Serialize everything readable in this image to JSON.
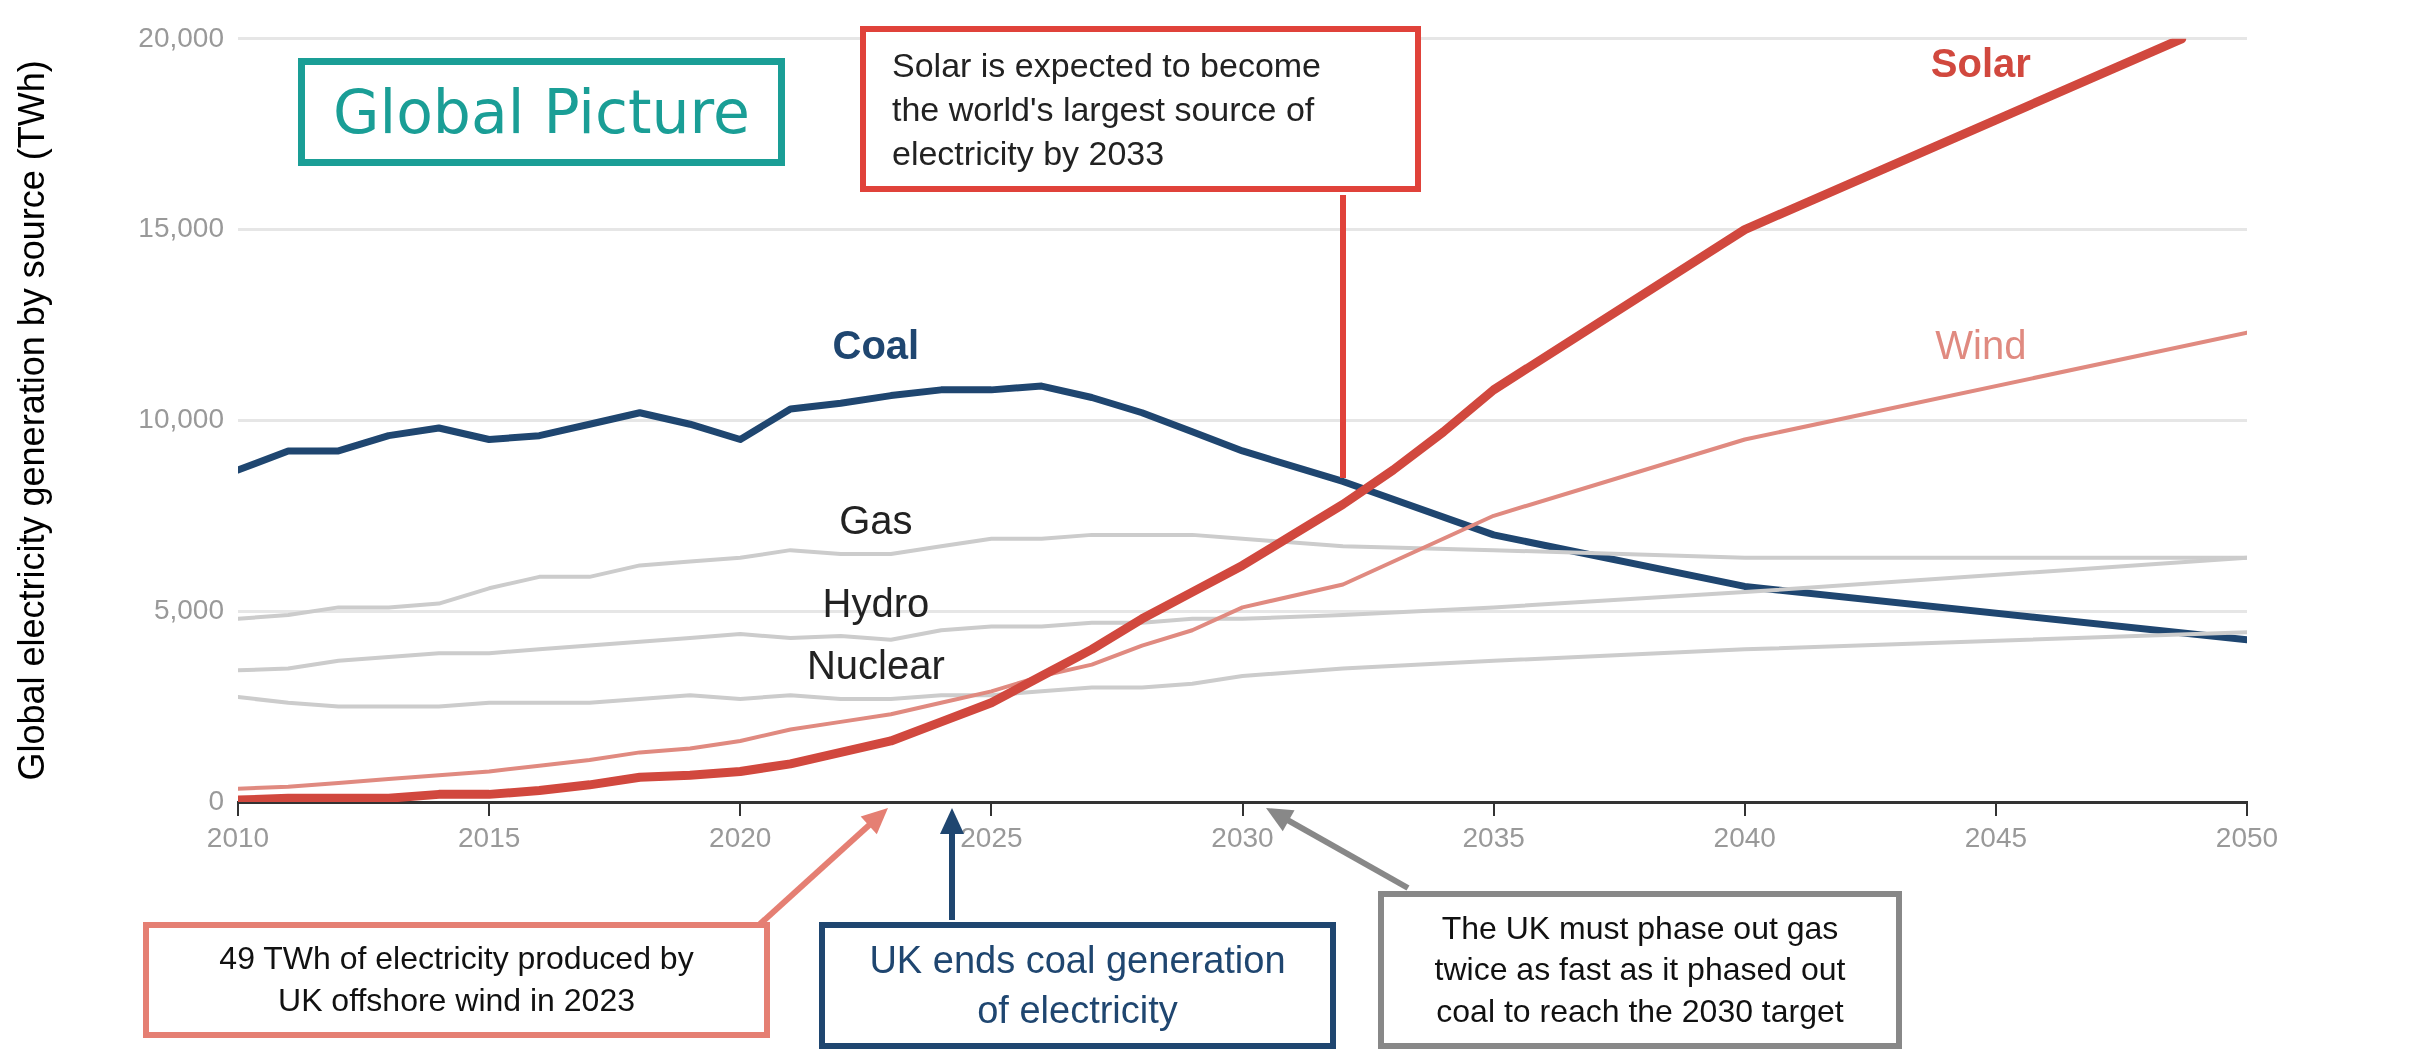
{
  "chart_data": {
    "type": "line",
    "title": "Global Picture",
    "ylabel": "Global electricity generation by source (TWh)",
    "x": [
      2010,
      2011,
      2012,
      2013,
      2014,
      2015,
      2016,
      2017,
      2018,
      2019,
      2020,
      2021,
      2022,
      2023,
      2024,
      2025,
      2026,
      2027,
      2028,
      2029,
      2030,
      2032,
      2035,
      2040,
      2050
    ],
    "series": [
      {
        "name": "Coal",
        "color": "#1f4670",
        "values": [
          8700,
          9200,
          9200,
          9600,
          9800,
          9500,
          9600,
          9900,
          10200,
          9900,
          9500,
          10300,
          10450,
          10650,
          10800,
          10800,
          10900,
          10600,
          10200,
          9700,
          9200,
          8400,
          7000,
          5650,
          4250
        ]
      },
      {
        "name": "Gas",
        "color": "#cccccc",
        "values": [
          4800,
          4900,
          5100,
          5100,
          5200,
          5600,
          5900,
          5900,
          6200,
          6300,
          6400,
          6600,
          6500,
          6500,
          6700,
          6900,
          6900,
          7000,
          7000,
          7000,
          6900,
          6700,
          6600,
          6400,
          6400
        ]
      },
      {
        "name": "Hydro",
        "color": "#cccccc",
        "values": [
          3450,
          3500,
          3700,
          3800,
          3900,
          3900,
          4000,
          4100,
          4200,
          4300,
          4400,
          4300,
          4350,
          4250,
          4500,
          4600,
          4600,
          4700,
          4700,
          4800,
          4800,
          4900,
          5100,
          5500,
          6400
        ]
      },
      {
        "name": "Nuclear",
        "color": "#cccccc",
        "values": [
          2750,
          2600,
          2500,
          2500,
          2500,
          2600,
          2600,
          2600,
          2700,
          2800,
          2700,
          2800,
          2700,
          2700,
          2800,
          2800,
          2900,
          3000,
          3000,
          3100,
          3300,
          3500,
          3700,
          4000,
          4450
        ]
      },
      {
        "name": "Wind",
        "color": "#e08a80",
        "values": [
          350,
          400,
          500,
          600,
          700,
          800,
          950,
          1100,
          1300,
          1400,
          1600,
          1900,
          2100,
          2300,
          2600,
          2900,
          3300,
          3600,
          4100,
          4500,
          5100,
          5700,
          7500,
          9500,
          12300
        ]
      },
      {
        "name": "Solar",
        "color": "#d1483e",
        "x": [
          2010,
          2011,
          2012,
          2013,
          2014,
          2015,
          2016,
          2017,
          2018,
          2019,
          2020,
          2021,
          2022,
          2023,
          2024,
          2025,
          2026,
          2027,
          2028,
          2029,
          2030,
          2031,
          2032,
          2033,
          2034,
          2035,
          2040,
          2048.7
        ],
        "values": [
          50,
          100,
          100,
          100,
          200,
          200,
          300,
          450,
          650,
          700,
          800,
          1000,
          1300,
          1600,
          2100,
          2600,
          3300,
          4000,
          4800,
          5500,
          6200,
          7000,
          7800,
          8700,
          9700,
          10800,
          15000,
          20000
        ]
      }
    ],
    "xlim": [
      2010,
      2050
    ],
    "xticks": [
      2010,
      2015,
      2020,
      2025,
      2030,
      2035,
      2040,
      2045,
      2050
    ],
    "ylim": [
      0,
      20000
    ],
    "yticks": [
      {
        "value": 0,
        "label": "0"
      },
      {
        "value": 5000,
        "label": "5,000"
      },
      {
        "value": 10000,
        "label": "10,000"
      },
      {
        "value": 15000,
        "label": "15,000"
      },
      {
        "value": 20000,
        "label": "20,000"
      }
    ],
    "grid": "y",
    "annotations": [
      "Solar is expected to become the world's largest source of electricity by 2033",
      "49 TWh of electricity produced by UK offshore wind in 2023",
      "UK ends coal generation of electricity",
      "The UK must phase out gas twice as fast as it phased out coal to reach the 2030 target"
    ]
  }
}
